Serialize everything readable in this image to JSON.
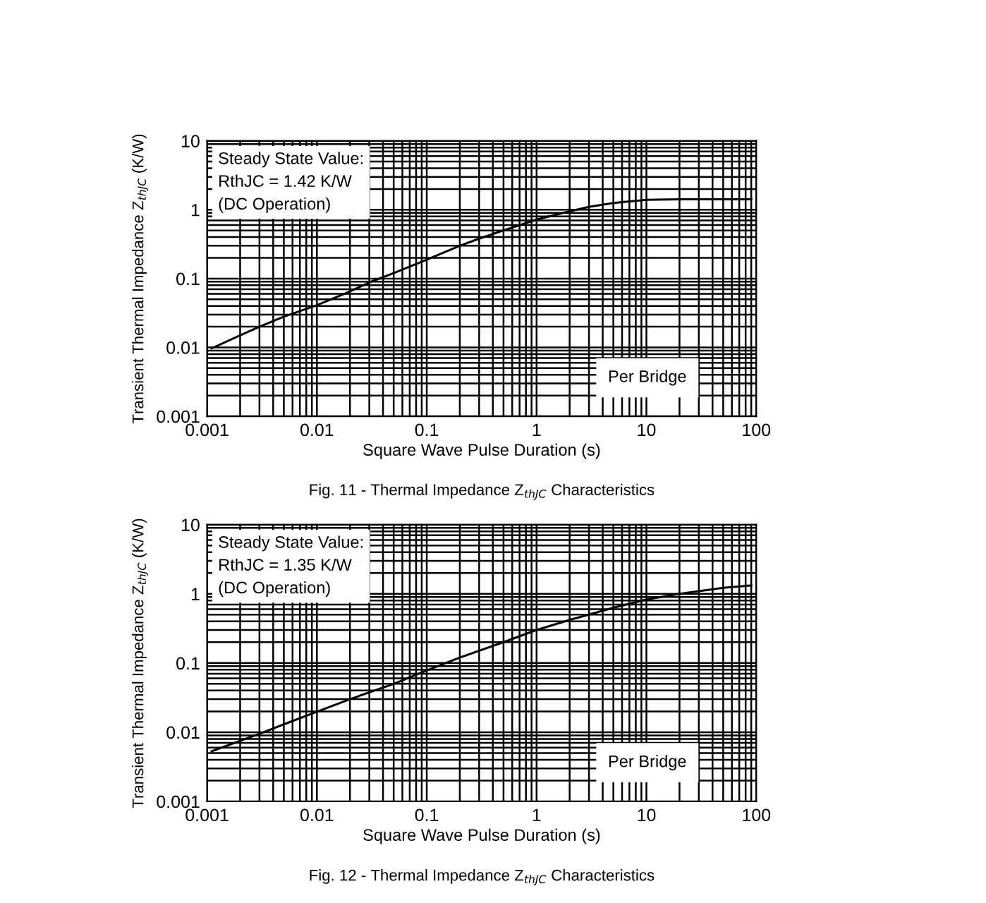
{
  "chart_data": [
    {
      "type": "line",
      "xlabel": "Square Wave Pulse Duration (s)",
      "ylabel": "Transient Thermal Impedance Z$_{thJC}$ (K/W)",
      "log": "xy",
      "grid": true,
      "xlim": [
        0.001,
        100
      ],
      "ylim": [
        0.001,
        10
      ],
      "xticks": [
        0.001,
        0.01,
        0.1,
        1,
        10,
        100
      ],
      "yticks": [
        0.001,
        0.01,
        0.1,
        1,
        10
      ],
      "x": [
        0.0011,
        0.002,
        0.003,
        0.005,
        0.01,
        0.02,
        0.03,
        0.05,
        0.1,
        0.2,
        0.3,
        0.5,
        1,
        2,
        3,
        5,
        10,
        20,
        50,
        90
      ],
      "series": [
        {
          "color": "#000000",
          "values": [
            0.0097,
            0.015,
            0.02,
            0.028,
            0.041,
            0.065,
            0.088,
            0.12,
            0.188,
            0.3,
            0.38,
            0.5,
            0.72,
            0.95,
            1.1,
            1.25,
            1.39,
            1.42,
            1.42,
            1.42
          ]
        }
      ],
      "annotations": [
        "Steady State Value:\nRthJC = 1.42 K/W\n(DC Operation)",
        "Per Bridge",
        "Fig. 11 - Thermal Impedance Z$_{thJC}$ Characteristics"
      ]
    },
    {
      "type": "line",
      "xlabel": "Square Wave Pulse Duration (s)",
      "ylabel": "Transient Thermal Impedance Z$_{thJC}$ (K/W)",
      "log": "xy",
      "grid": true,
      "xlim": [
        0.001,
        100
      ],
      "ylim": [
        0.001,
        10
      ],
      "xticks": [
        0.001,
        0.01,
        0.1,
        1,
        10,
        100
      ],
      "yticks": [
        0.001,
        0.01,
        0.1,
        1,
        10
      ],
      "x": [
        0.0011,
        0.002,
        0.003,
        0.005,
        0.01,
        0.02,
        0.05,
        0.1,
        0.2,
        0.5,
        1,
        2,
        5,
        10,
        20,
        50,
        90
      ],
      "series": [
        {
          "color": "#000000",
          "values": [
            0.0053,
            0.0075,
            0.0095,
            0.013,
            0.0198,
            0.03,
            0.05,
            0.078,
            0.12,
            0.2,
            0.3,
            0.42,
            0.63,
            0.83,
            1.0,
            1.22,
            1.32
          ]
        }
      ],
      "annotations": [
        "Steady State Value:\nRthJC = 1.35 K/W\n(DC Operation)",
        "Per Bridge",
        "Fig. 12 - Thermal Impedance Z$_{thJC}$ Characteristics"
      ]
    }
  ]
}
